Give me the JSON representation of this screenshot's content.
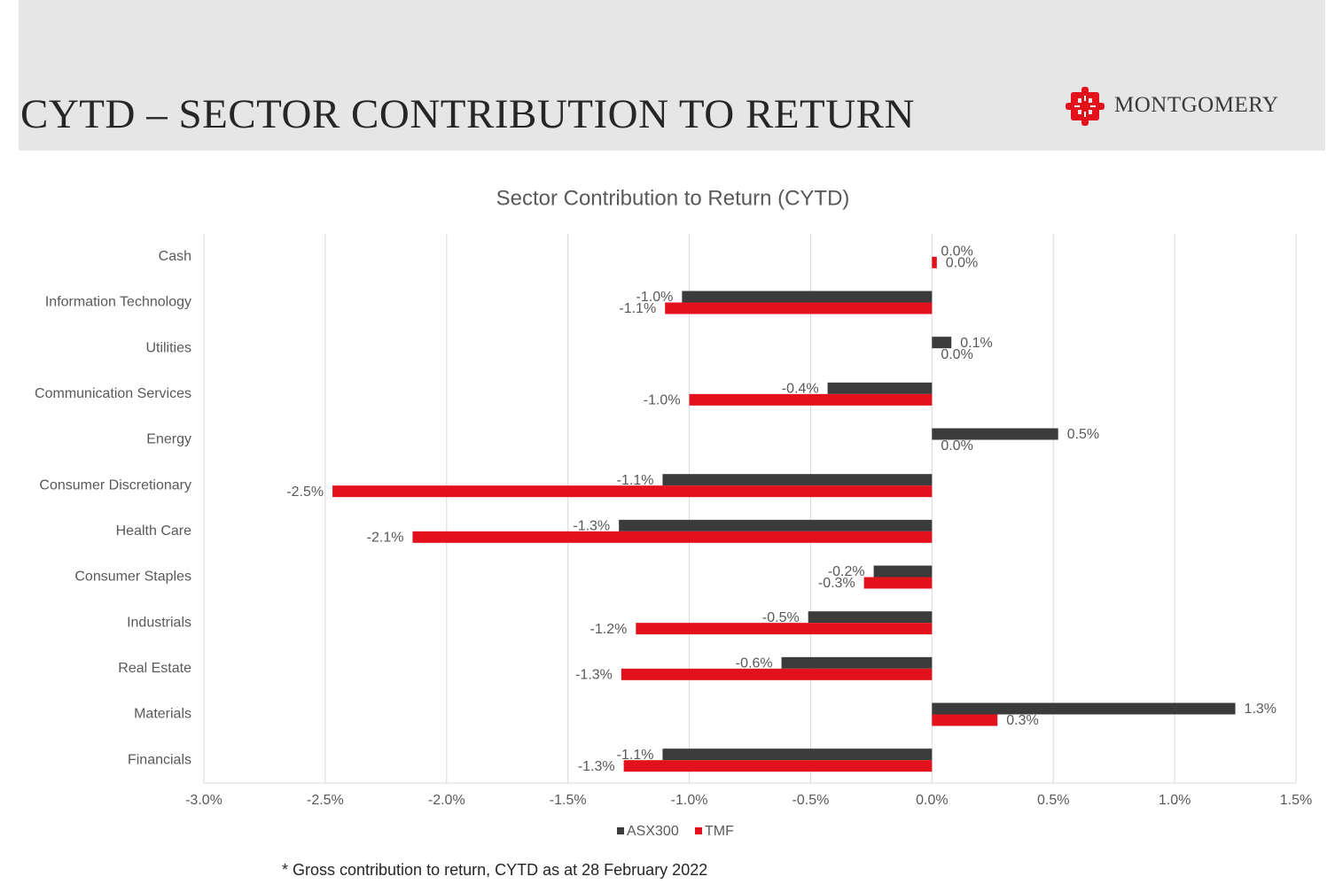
{
  "header": {
    "title": "CYTD – SECTOR CONTRIBUTION TO RETURN",
    "logo_text": "MONTGOMERY",
    "logo_icon": "montgomery-logo-icon",
    "background": "#e6e6e6"
  },
  "footnote": "* Gross contribution to return, CYTD as at 28 February 2022",
  "chart_data": {
    "type": "bar",
    "orientation": "horizontal",
    "title": "Sector Contribution to Return (CYTD)",
    "xlabel": "",
    "ylabel": "",
    "xlim": [
      -0.03,
      0.015
    ],
    "x_ticks": [
      -0.03,
      -0.025,
      -0.02,
      -0.015,
      -0.01,
      -0.005,
      0.0,
      0.005,
      0.01,
      0.015
    ],
    "x_tick_labels": [
      "-3.0%",
      "-2.5%",
      "-2.0%",
      "-1.5%",
      "-1.0%",
      "-0.5%",
      "0.0%",
      "0.5%",
      "1.0%",
      "1.5%"
    ],
    "grid": "vertical",
    "legend_position": "bottom",
    "categories": [
      "Cash",
      "Information Technology",
      "Utilities",
      "Communication Services",
      "Energy",
      "Consumer Discretionary",
      "Health Care",
      "Consumer Staples",
      "Industrials",
      "Real Estate",
      "Materials",
      "Financials"
    ],
    "series": [
      {
        "name": "ASX300",
        "color": "#3b3b3b",
        "values": [
          0.0,
          -0.0103,
          0.0008,
          -0.0043,
          0.0052,
          -0.0111,
          -0.0129,
          -0.0024,
          -0.0051,
          -0.0062,
          0.0125,
          -0.0111
        ],
        "labels": [
          "0.0%",
          "-1.0%",
          "0.1%",
          "-0.4%",
          "0.5%",
          "-1.1%",
          "-1.3%",
          "-0.2%",
          "-0.5%",
          "-0.6%",
          "1.3%",
          "-1.1%"
        ]
      },
      {
        "name": "TMF",
        "color": "#e3111b",
        "values": [
          0.0002,
          -0.011,
          0.0,
          -0.01,
          0.0,
          -0.0247,
          -0.0214,
          -0.0028,
          -0.0122,
          -0.0128,
          0.0027,
          -0.0127
        ],
        "labels": [
          "0.0%",
          "-1.1%",
          "0.0%",
          "-1.0%",
          "0.0%",
          "-2.5%",
          "-2.1%",
          "-0.3%",
          "-1.2%",
          "-1.3%",
          "0.3%",
          "-1.3%"
        ]
      }
    ]
  }
}
